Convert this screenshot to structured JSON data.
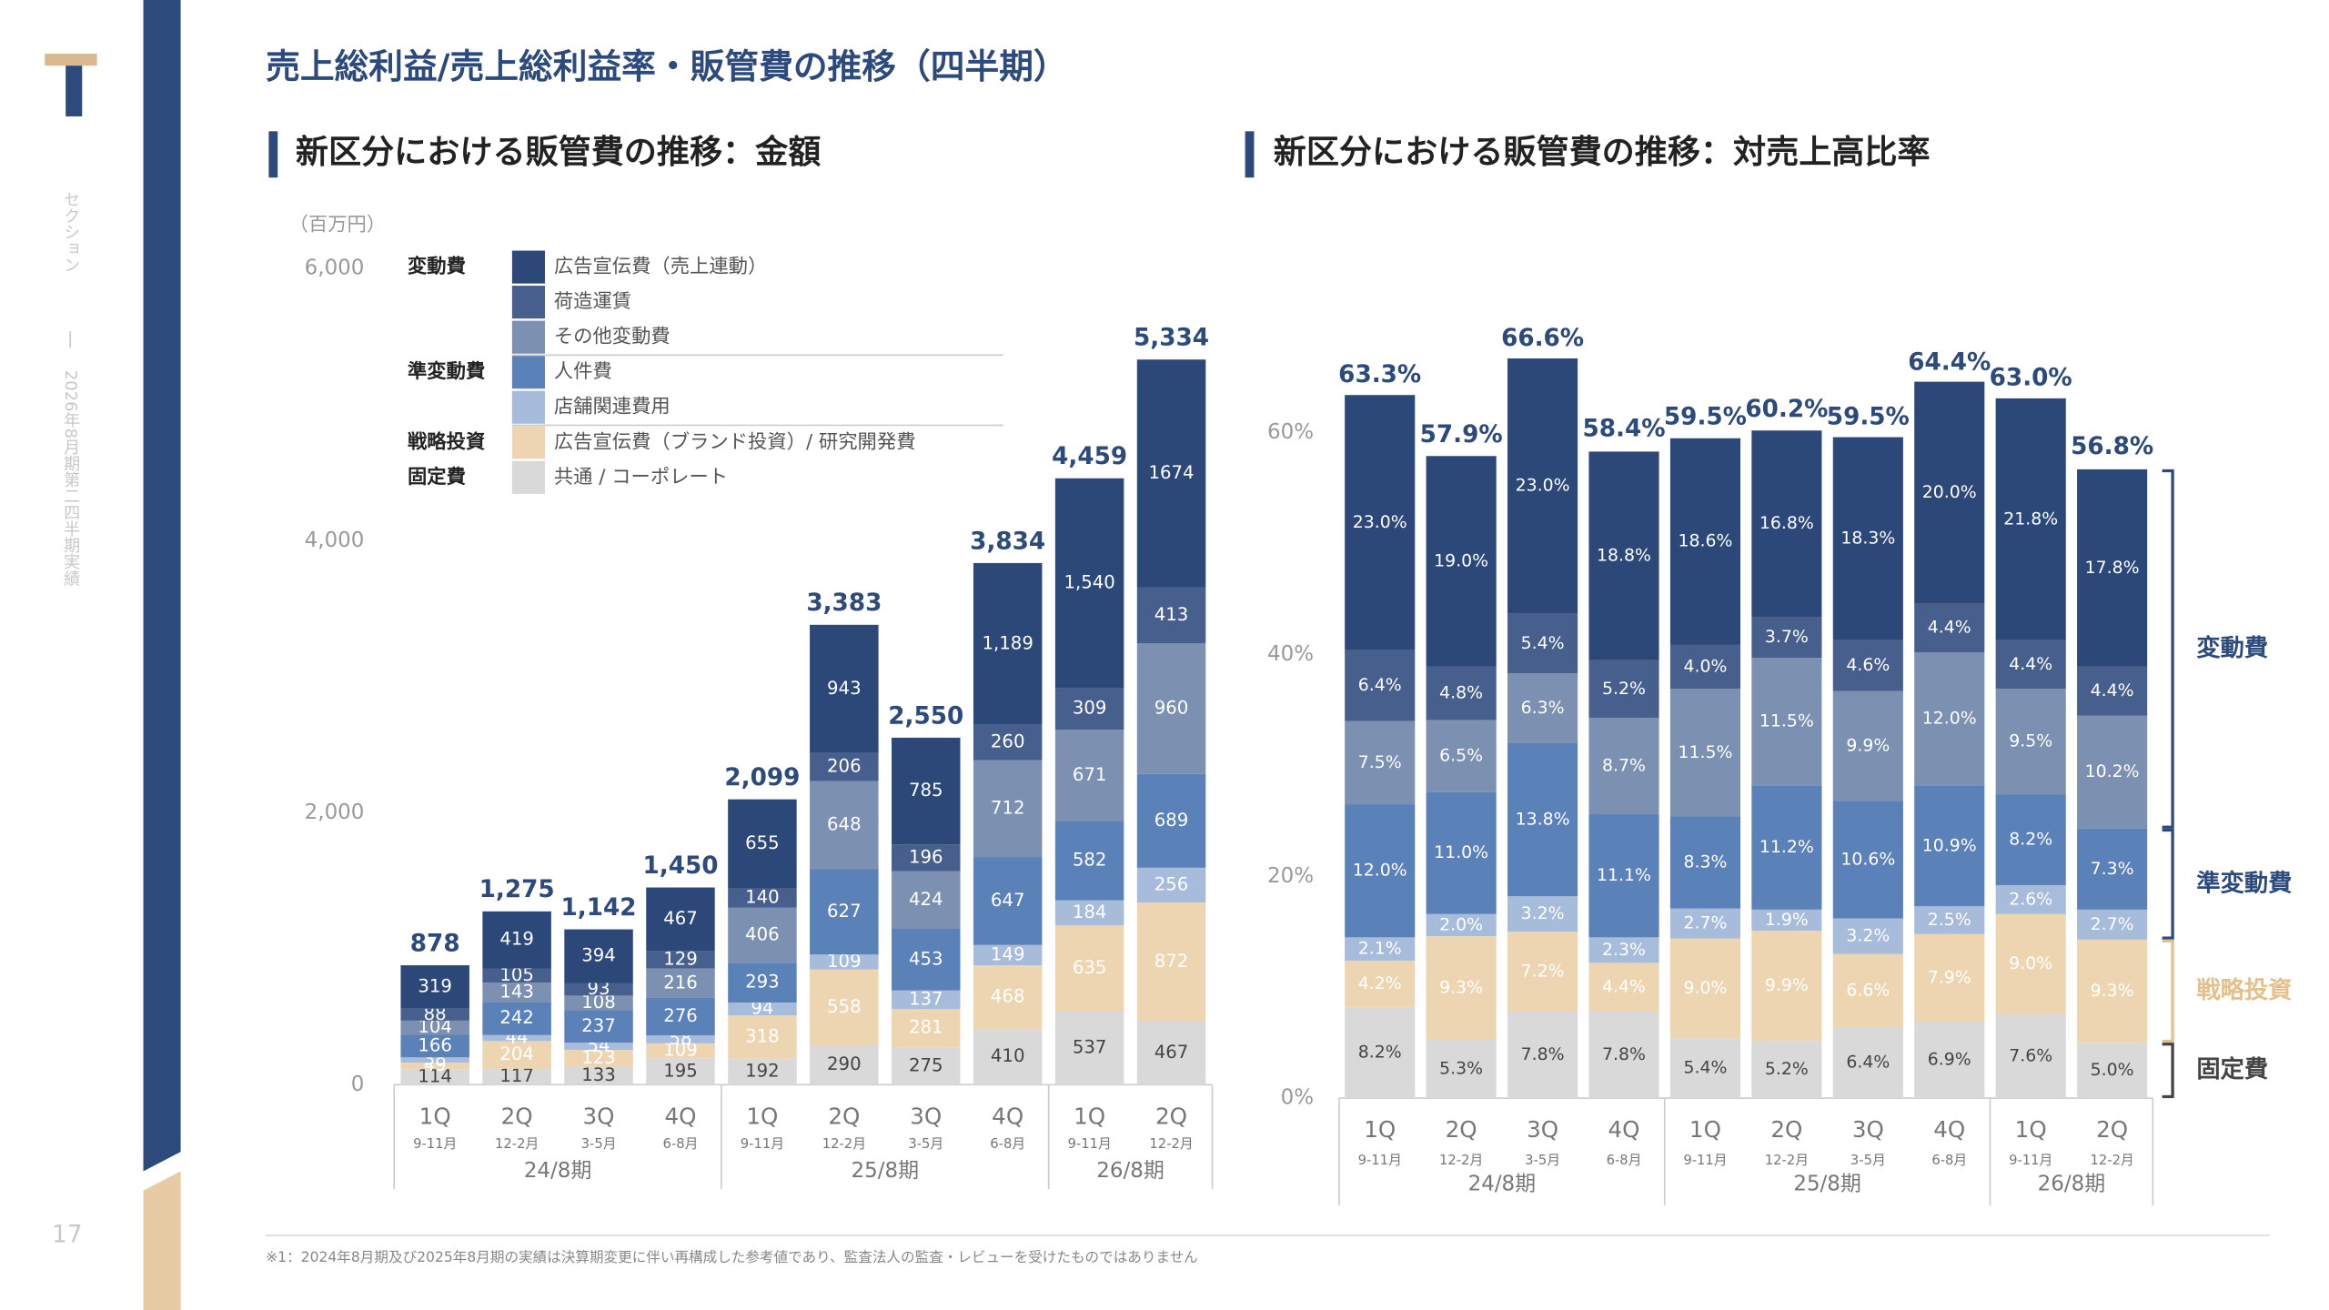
{
  "header": {
    "title": "売上総利益/売上総利益率・販管費の推移（四半期）"
  },
  "sidebar": {
    "section": "セクション",
    "report": "2026年8月期第二四半期実績",
    "page_number": "17"
  },
  "footnote": "※1：2024年8月期及び2025年8月期の実績は決算期変更に伴い再構成した参考値であり、監査法人の監査・レビューを受けたものではありません",
  "chart_data": [
    {
      "type": "stacked_bar",
      "title": "新区分における販管費の推移：金額",
      "unit": "（百万円）",
      "categories": [
        "1Q",
        "2Q",
        "3Q",
        "4Q",
        "1Q",
        "2Q",
        "3Q",
        "4Q",
        "1Q",
        "2Q"
      ],
      "category_months": [
        "9-11月",
        "12-2月",
        "3-5月",
        "6-8月",
        "9-11月",
        "12-2月",
        "3-5月",
        "6-8月",
        "9-11月",
        "12-2月"
      ],
      "category_groups": [
        "24/8期",
        "25/8期",
        "26/8期"
      ],
      "ylim": [
        0,
        6000
      ],
      "yticks": [
        0,
        {
          "value": 2000,
          "label": "2,000"
        },
        {
          "value": 4000,
          "label": "4,000"
        },
        {
          "value": 6000,
          "label": "6,000"
        }
      ],
      "legend_groups": [
        "変動費",
        "準変動費",
        "戦略投資",
        "固定費"
      ],
      "series": [
        {
          "name": "共通 / コーポレート",
          "color": "#d9d9d9",
          "values": [
            114,
            117,
            133,
            195,
            192,
            290,
            275,
            410,
            537,
            467
          ]
        },
        {
          "name": "広告宣伝費（ブランド投資）/ 研究開発費",
          "color": "#edd5b1",
          "values": [
            49,
            204,
            123,
            109,
            318,
            558,
            281,
            468,
            635,
            872
          ]
        },
        {
          "name": "店舗関連費用",
          "color": "#a7bbdb",
          "values": [
            38,
            44,
            54,
            58,
            94,
            109,
            137,
            149,
            184,
            256
          ]
        },
        {
          "name": "人件費",
          "color": "#5b81b9",
          "values": [
            166,
            242,
            237,
            276,
            293,
            627,
            453,
            647,
            582,
            689
          ]
        },
        {
          "name": "その他変動費",
          "color": "#7c90b1",
          "values": [
            104,
            143,
            108,
            216,
            406,
            648,
            424,
            712,
            671,
            960
          ]
        },
        {
          "name": "荷造運賃",
          "color": "#475f8d",
          "values": [
            88,
            105,
            93,
            129,
            140,
            206,
            196,
            260,
            309,
            413
          ]
        },
        {
          "name": "広告宣伝費（売上連動）",
          "color": "#2c4878",
          "values": [
            319,
            419,
            394,
            467,
            655,
            943,
            785,
            1189,
            1540,
            1674
          ],
          "value_labels": [
            "319",
            "419",
            "394",
            "467",
            "655",
            "943",
            "785",
            "1,189",
            "1,540",
            "1674"
          ]
        }
      ],
      "totals": {
        "values": [
          878,
          1275,
          1142,
          1450,
          2099,
          3383,
          2550,
          3834,
          4459,
          5334
        ],
        "value_labels": [
          "878",
          "1,275",
          "1,142",
          "1,450",
          "2,099",
          "3,383",
          "2,550",
          "3,834",
          "4,459",
          "5,334"
        ]
      }
    },
    {
      "type": "stacked_bar",
      "title": "新区分における販管費の推移：対売上高比率",
      "categories": [
        "1Q",
        "2Q",
        "3Q",
        "4Q",
        "1Q",
        "2Q",
        "3Q",
        "4Q",
        "1Q",
        "2Q"
      ],
      "category_months": [
        "9-11月",
        "12-2月",
        "3-5月",
        "6-8月",
        "9-11月",
        "12-2月",
        "3-5月",
        "6-8月",
        "9-11月",
        "12-2月"
      ],
      "category_groups": [
        "24/8期",
        "25/8期",
        "26/8期"
      ],
      "ylim": [
        0,
        70
      ],
      "yticks": [
        {
          "value": 0,
          "label": "0%"
        },
        {
          "value": 20,
          "label": "20%"
        },
        {
          "value": 40,
          "label": "40%"
        },
        {
          "value": 60,
          "label": "60%"
        }
      ],
      "groups": [
        "変動費",
        "準変動費",
        "戦略投資",
        "固定費"
      ],
      "series": [
        {
          "color": "#d9d9d9",
          "values": [
            8.2,
            5.3,
            7.8,
            7.8,
            5.4,
            5.2,
            6.4,
            6.9,
            7.6,
            5.0
          ],
          "value_labels": [
            "8.2%",
            "5.3%",
            "7.8%",
            "7.8%",
            "5.4%",
            "5.2%",
            "6.4%",
            "6.9%",
            "7.6%",
            "5.0%"
          ]
        },
        {
          "color": "#edd5b1",
          "values": [
            4.2,
            9.3,
            7.2,
            4.4,
            9.0,
            9.9,
            6.6,
            7.9,
            9.0,
            9.3
          ],
          "value_labels": [
            "4.2%",
            "9.3%",
            "7.2%",
            "4.4%",
            "9.0%",
            "9.9%",
            "6.6%",
            "7.9%",
            "9.0%",
            "9.3%"
          ]
        },
        {
          "color": "#a7bbdb",
          "values": [
            2.1,
            2.0,
            3.2,
            2.3,
            2.7,
            1.9,
            3.2,
            2.5,
            2.6,
            2.7
          ],
          "value_labels": [
            "2.1%",
            "2.0%",
            "3.2%",
            "2.3%",
            "2.7%",
            "1.9%",
            "3.2%",
            "2.5%",
            "2.6%",
            "2.7%"
          ]
        },
        {
          "color": "#5b81b9",
          "values": [
            12.0,
            11.0,
            13.8,
            11.1,
            8.3,
            11.2,
            10.6,
            10.9,
            8.2,
            7.3
          ],
          "value_labels": [
            "12.0%",
            "11.0%",
            "13.8%",
            "11.1%",
            "8.3%",
            "11.2%",
            "10.6%",
            "10.9%",
            "8.2%",
            "7.3%"
          ]
        },
        {
          "color": "#7c90b1",
          "values": [
            7.5,
            6.5,
            6.3,
            8.7,
            11.5,
            11.5,
            9.9,
            12.0,
            9.5,
            10.2
          ],
          "value_labels": [
            "7.5%",
            "6.5%",
            "6.3%",
            "8.7%",
            "11.5%",
            "11.5%",
            "9.9%",
            "12.0%",
            "9.5%",
            "10.2%"
          ]
        },
        {
          "color": "#475f8d",
          "values": [
            6.4,
            4.8,
            5.4,
            5.2,
            4.0,
            3.7,
            4.6,
            4.4,
            4.4,
            4.4
          ],
          "value_labels": [
            "6.4%",
            "4.8%",
            "5.4%",
            "5.2%",
            "4.0%",
            "3.7%",
            "4.6%",
            "4.4%",
            "4.4%",
            "4.4%"
          ]
        },
        {
          "color": "#2c4878",
          "values": [
            23.0,
            19.0,
            23.0,
            18.8,
            18.6,
            16.8,
            18.3,
            20.0,
            21.8,
            17.8
          ],
          "value_labels": [
            "23.0%",
            "19.0%",
            "23.0%",
            "18.8%",
            "18.6%",
            "16.8%",
            "18.3%",
            "20.0%",
            "21.8%",
            "17.8%"
          ]
        }
      ],
      "totals": {
        "values": [
          63.3,
          57.9,
          66.6,
          58.4,
          59.5,
          60.2,
          59.5,
          64.4,
          63.0,
          56.8
        ],
        "value_labels": [
          "63.3%",
          "57.9%",
          "66.6%",
          "58.4%",
          "59.5%",
          "60.2%",
          "59.5%",
          "64.4%",
          "63.0%",
          "56.8%"
        ]
      }
    }
  ]
}
